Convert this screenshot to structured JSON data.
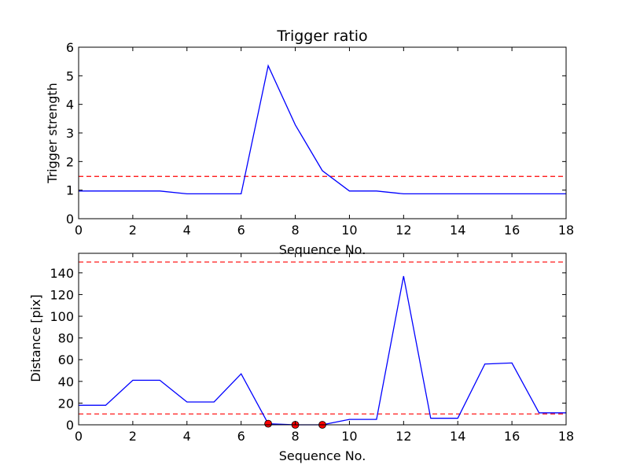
{
  "chart_data": [
    {
      "type": "line",
      "title": "Trigger ratio",
      "xlabel": "Sequence No.",
      "ylabel": "Trigger strength",
      "xlim": [
        0,
        18
      ],
      "ylim": [
        0,
        6
      ],
      "xticks": [
        0,
        2,
        4,
        6,
        8,
        10,
        12,
        14,
        16,
        18
      ],
      "yticks": [
        0,
        1,
        2,
        3,
        4,
        5,
        6
      ],
      "grid": false,
      "series": [
        {
          "color": "#0000ff",
          "x": [
            0,
            1,
            2,
            3,
            4,
            5,
            6,
            7,
            8,
            9,
            10,
            11,
            12,
            13,
            14,
            15,
            16,
            17,
            18
          ],
          "y": [
            0.97,
            0.97,
            0.97,
            0.97,
            0.87,
            0.87,
            0.87,
            5.35,
            3.28,
            1.68,
            0.97,
            0.97,
            0.87,
            0.87,
            0.87,
            0.87,
            0.87,
            0.87,
            0.87
          ]
        }
      ],
      "reference_lines": [
        {
          "y": 1.48,
          "color": "#ff0000",
          "style": "dashed"
        }
      ]
    },
    {
      "type": "line",
      "title": "",
      "xlabel": "Sequence No.",
      "ylabel": "Distance [pix]",
      "xlim": [
        0,
        18
      ],
      "ylim": [
        0,
        158
      ],
      "xticks": [
        0,
        2,
        4,
        6,
        8,
        10,
        12,
        14,
        16,
        18
      ],
      "yticks": [
        0,
        20,
        40,
        60,
        80,
        100,
        120,
        140
      ],
      "grid": false,
      "series": [
        {
          "color": "#0000ff",
          "x": [
            0,
            1,
            2,
            3,
            4,
            5,
            6,
            7,
            8,
            9,
            10,
            11,
            12,
            13,
            14,
            15,
            16,
            17,
            18
          ],
          "y": [
            18,
            18,
            41,
            41,
            21,
            21,
            47,
            1,
            0,
            0,
            5,
            5,
            137,
            6,
            6,
            56,
            57,
            11,
            11
          ]
        }
      ],
      "markers": {
        "color": "#ff0000",
        "x": [
          7,
          8,
          9
        ],
        "y": [
          1,
          0,
          0
        ]
      },
      "reference_lines": [
        {
          "y": 150,
          "color": "#ff0000",
          "style": "dashed"
        },
        {
          "y": 10,
          "color": "#ff0000",
          "style": "dashed"
        }
      ]
    }
  ]
}
